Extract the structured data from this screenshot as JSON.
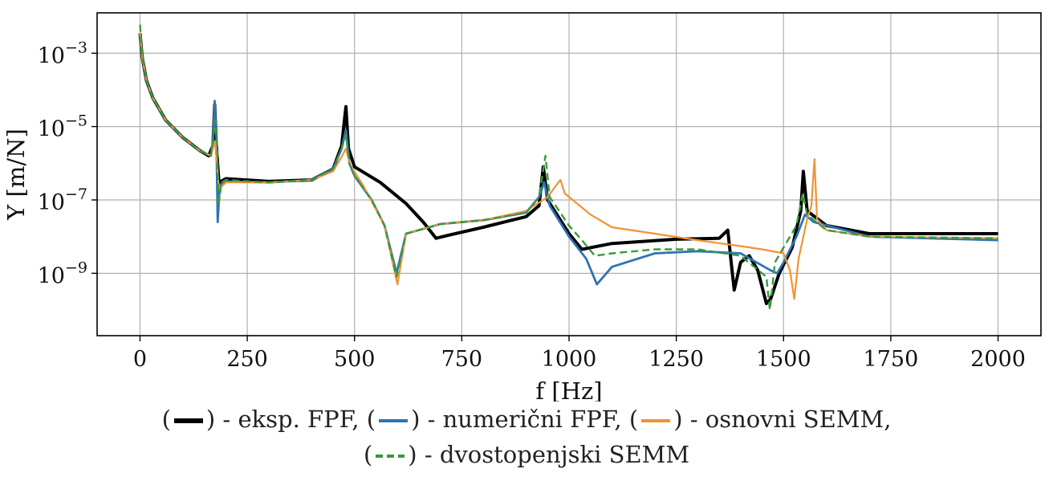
{
  "chart_data": {
    "type": "line",
    "title": "",
    "xlabel": "f [Hz]",
    "ylabel": "Y [m/N]",
    "xlim": [
      -100,
      2100
    ],
    "ylim_log10": [
      -10.7,
      -1.9
    ],
    "y_scale": "log",
    "grid": true,
    "legend_position": "bottom",
    "xticks": [
      0,
      250,
      500,
      750,
      1000,
      1250,
      1500,
      1750,
      2000
    ],
    "xtick_labels": [
      "0",
      "250",
      "500",
      "750",
      "1000",
      "1250",
      "1500",
      "1750",
      "2000"
    ],
    "yticks_log10": [
      -3,
      -5,
      -7,
      -9
    ],
    "ytick_labels": [
      {
        "base": "10",
        "exp": "−3"
      },
      {
        "base": "10",
        "exp": "−5"
      },
      {
        "base": "10",
        "exp": "−7"
      },
      {
        "base": "10",
        "exp": "−9"
      }
    ],
    "series": [
      {
        "name": "eksp. FPF",
        "color": "#000000",
        "dash": "solid",
        "width": 4,
        "points": [
          [
            0,
            0.0035
          ],
          [
            5,
            0.0008
          ],
          [
            15,
            0.00018
          ],
          [
            30,
            6e-05
          ],
          [
            60,
            1.5e-05
          ],
          [
            100,
            5e-06
          ],
          [
            140,
            2.2e-06
          ],
          [
            160,
            1.6e-06
          ],
          [
            170,
            3e-06
          ],
          [
            174,
            4e-05
          ],
          [
            178,
            3e-06
          ],
          [
            184,
            3e-07
          ],
          [
            200,
            3.8e-07
          ],
          [
            300,
            3.2e-07
          ],
          [
            400,
            3.5e-07
          ],
          [
            450,
            7e-07
          ],
          [
            470,
            3e-06
          ],
          [
            480,
            3.5e-05
          ],
          [
            486,
            2.5e-06
          ],
          [
            500,
            8e-07
          ],
          [
            560,
            3e-07
          ],
          [
            620,
            8e-08
          ],
          [
            660,
            2.5e-08
          ],
          [
            690,
            9e-09
          ],
          [
            720,
            1.1e-08
          ],
          [
            800,
            1.8e-08
          ],
          [
            900,
            3.5e-08
          ],
          [
            930,
            7e-08
          ],
          [
            940,
            8e-07
          ],
          [
            950,
            1e-07
          ],
          [
            1000,
            1.2e-08
          ],
          [
            1030,
            4.5e-09
          ],
          [
            1100,
            6.5e-09
          ],
          [
            1250,
            8.5e-09
          ],
          [
            1350,
            9e-09
          ],
          [
            1370,
            1.5e-08
          ],
          [
            1380,
            1.2e-09
          ],
          [
            1385,
            3.5e-10
          ],
          [
            1400,
            2e-09
          ],
          [
            1420,
            3e-09
          ],
          [
            1440,
            1.2e-09
          ],
          [
            1460,
            1.5e-10
          ],
          [
            1470,
            2e-10
          ],
          [
            1490,
            1e-09
          ],
          [
            1520,
            5e-09
          ],
          [
            1540,
            5e-08
          ],
          [
            1546,
            6e-07
          ],
          [
            1555,
            5e-08
          ],
          [
            1600,
            2e-08
          ],
          [
            1700,
            1.2e-08
          ],
          [
            2000,
            1.2e-08
          ]
        ]
      },
      {
        "name": "numerični FPF",
        "color": "#2e74b5",
        "dash": "solid",
        "width": 2.8,
        "points": [
          [
            0,
            0.0035
          ],
          [
            5,
            0.0008
          ],
          [
            15,
            0.00018
          ],
          [
            30,
            6e-05
          ],
          [
            60,
            1.5e-05
          ],
          [
            100,
            5e-06
          ],
          [
            140,
            2.2e-06
          ],
          [
            165,
            1.6e-06
          ],
          [
            170,
            4e-06
          ],
          [
            174,
            5e-05
          ],
          [
            178,
            5e-06
          ],
          [
            181,
            2.5e-08
          ],
          [
            186,
            2.5e-07
          ],
          [
            200,
            3.2e-07
          ],
          [
            300,
            3e-07
          ],
          [
            400,
            3.5e-07
          ],
          [
            450,
            7e-07
          ],
          [
            470,
            2.5e-06
          ],
          [
            480,
            8e-06
          ],
          [
            488,
            1e-06
          ],
          [
            500,
            4.5e-07
          ],
          [
            540,
            1e-07
          ],
          [
            570,
            2e-08
          ],
          [
            598,
            1e-09
          ],
          [
            620,
            1.2e-08
          ],
          [
            700,
            2.2e-08
          ],
          [
            800,
            2.8e-08
          ],
          [
            900,
            4.5e-08
          ],
          [
            930,
            1.2e-07
          ],
          [
            942,
            3e-07
          ],
          [
            955,
            7e-08
          ],
          [
            1000,
            1e-08
          ],
          [
            1040,
            2.5e-09
          ],
          [
            1065,
            5e-10
          ],
          [
            1100,
            1.5e-09
          ],
          [
            1200,
            3.5e-09
          ],
          [
            1300,
            4e-09
          ],
          [
            1400,
            3.5e-09
          ],
          [
            1470,
            1.2e-09
          ],
          [
            1485,
            1e-09
          ],
          [
            1500,
            2e-09
          ],
          [
            1530,
            1e-08
          ],
          [
            1550,
            4e-08
          ],
          [
            1570,
            2.5e-08
          ],
          [
            1700,
            1e-08
          ],
          [
            2000,
            8e-09
          ]
        ]
      },
      {
        "name": "osnovni SEMM",
        "color": "#f39233",
        "dash": "solid",
        "width": 2.2,
        "points": [
          [
            0,
            0.0035
          ],
          [
            5,
            0.0008
          ],
          [
            15,
            0.00018
          ],
          [
            30,
            6e-05
          ],
          [
            60,
            1.5e-05
          ],
          [
            100,
            5e-06
          ],
          [
            140,
            2.2e-06
          ],
          [
            165,
            1.6e-06
          ],
          [
            175,
            4e-06
          ],
          [
            180,
            9e-07
          ],
          [
            184,
            2e-07
          ],
          [
            200,
            3e-07
          ],
          [
            300,
            3e-07
          ],
          [
            400,
            3.5e-07
          ],
          [
            450,
            6e-07
          ],
          [
            470,
            1.5e-06
          ],
          [
            480,
            2.5e-06
          ],
          [
            490,
            9e-07
          ],
          [
            520,
            2.5e-07
          ],
          [
            570,
            2e-08
          ],
          [
            600,
            5e-10
          ],
          [
            620,
            1.2e-08
          ],
          [
            700,
            2.2e-08
          ],
          [
            800,
            2.8e-08
          ],
          [
            900,
            5e-08
          ],
          [
            950,
            1.2e-07
          ],
          [
            970,
            2.5e-07
          ],
          [
            980,
            3.5e-07
          ],
          [
            990,
            1.5e-07
          ],
          [
            1050,
            4e-08
          ],
          [
            1100,
            1.8e-08
          ],
          [
            1200,
            1.2e-08
          ],
          [
            1300,
            8e-09
          ],
          [
            1400,
            5.5e-09
          ],
          [
            1450,
            4.5e-09
          ],
          [
            1500,
            3.5e-09
          ],
          [
            1515,
            1.2e-09
          ],
          [
            1525,
            2e-10
          ],
          [
            1535,
            2.5e-09
          ],
          [
            1555,
            3e-08
          ],
          [
            1565,
            7e-08
          ],
          [
            1572,
            1.3e-06
          ],
          [
            1578,
            3e-08
          ],
          [
            1600,
            1.5e-08
          ],
          [
            1700,
            1e-08
          ],
          [
            2000,
            9e-09
          ]
        ]
      },
      {
        "name": "dvostopenjski SEMM",
        "color": "#3a9a3a",
        "dash": "dashed",
        "width": 2.4,
        "points": [
          [
            0,
            0.006
          ],
          [
            5,
            0.001
          ],
          [
            15,
            0.00018
          ],
          [
            30,
            6e-05
          ],
          [
            60,
            1.5e-05
          ],
          [
            100,
            5e-06
          ],
          [
            140,
            2.2e-06
          ],
          [
            165,
            1.6e-06
          ],
          [
            170,
            4e-06
          ],
          [
            175,
            1.5e-05
          ],
          [
            180,
            3e-06
          ],
          [
            183,
            7e-08
          ],
          [
            190,
            3e-07
          ],
          [
            200,
            3.5e-07
          ],
          [
            300,
            3e-07
          ],
          [
            400,
            3.5e-07
          ],
          [
            450,
            7e-07
          ],
          [
            470,
            2.5e-06
          ],
          [
            480,
            6e-06
          ],
          [
            488,
            1e-06
          ],
          [
            500,
            4.5e-07
          ],
          [
            540,
            1e-07
          ],
          [
            570,
            2e-08
          ],
          [
            598,
            8e-10
          ],
          [
            620,
            1.2e-08
          ],
          [
            700,
            2.2e-08
          ],
          [
            800,
            2.8e-08
          ],
          [
            900,
            4.5e-08
          ],
          [
            930,
            1.2e-07
          ],
          [
            945,
            1.6e-06
          ],
          [
            955,
            1.2e-07
          ],
          [
            1000,
            2e-08
          ],
          [
            1030,
            8e-09
          ],
          [
            1060,
            3e-09
          ],
          [
            1100,
            3.5e-09
          ],
          [
            1200,
            4.5e-09
          ],
          [
            1300,
            4.5e-09
          ],
          [
            1400,
            3e-09
          ],
          [
            1460,
            8e-10
          ],
          [
            1468,
            1e-10
          ],
          [
            1480,
            2e-09
          ],
          [
            1530,
            2e-08
          ],
          [
            1545,
            1.5e-07
          ],
          [
            1555,
            4e-08
          ],
          [
            1600,
            1.5e-08
          ],
          [
            1700,
            1e-08
          ],
          [
            2000,
            9e-09
          ]
        ]
      }
    ]
  },
  "legend": {
    "line1": [
      {
        "series": 0,
        "text": "- eksp. FPF,"
      },
      {
        "series": 1,
        "text": "-  numerični FPF,"
      },
      {
        "series": 2,
        "text": "- osnovni SEMM,"
      }
    ],
    "line2": [
      {
        "series": 3,
        "text": "- dvostopenjski SEMM"
      }
    ]
  }
}
